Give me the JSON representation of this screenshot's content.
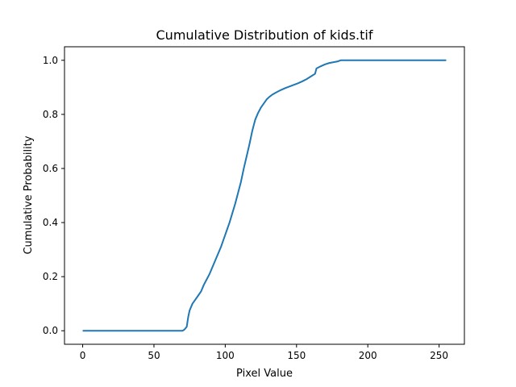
{
  "chart_data": {
    "type": "line",
    "title": "Cumulative Distribution of kids.tif",
    "xlabel": "Pixel Value",
    "ylabel": "Cumulative Probability",
    "xlim": [
      -12.75,
      267.75
    ],
    "ylim": [
      -0.05,
      1.05
    ],
    "xticks": [
      0,
      50,
      100,
      150,
      200,
      250
    ],
    "yticks": [
      0.0,
      0.2,
      0.4,
      0.6,
      0.8,
      1.0
    ],
    "xtick_labels": [
      "0",
      "50",
      "100",
      "150",
      "200",
      "250"
    ],
    "ytick_labels": [
      "0.0",
      "0.2",
      "0.4",
      "0.6",
      "0.8",
      "1.0"
    ],
    "grid": false,
    "series": [
      {
        "color": "#1f77b4",
        "points": [
          [
            0,
            0.0
          ],
          [
            70,
            0.0
          ],
          [
            71,
            0.003
          ],
          [
            72,
            0.008
          ],
          [
            73,
            0.015
          ],
          [
            74,
            0.05
          ],
          [
            75,
            0.075
          ],
          [
            77,
            0.1
          ],
          [
            79,
            0.115
          ],
          [
            81,
            0.13
          ],
          [
            83,
            0.145
          ],
          [
            85,
            0.17
          ],
          [
            87,
            0.19
          ],
          [
            89,
            0.21
          ],
          [
            91,
            0.235
          ],
          [
            93,
            0.26
          ],
          [
            95,
            0.285
          ],
          [
            97,
            0.31
          ],
          [
            99,
            0.34
          ],
          [
            101,
            0.37
          ],
          [
            103,
            0.4
          ],
          [
            105,
            0.435
          ],
          [
            107,
            0.47
          ],
          [
            109,
            0.51
          ],
          [
            111,
            0.55
          ],
          [
            113,
            0.6
          ],
          [
            115,
            0.645
          ],
          [
            117,
            0.69
          ],
          [
            119,
            0.74
          ],
          [
            121,
            0.78
          ],
          [
            123,
            0.805
          ],
          [
            125,
            0.825
          ],
          [
            127,
            0.84
          ],
          [
            129,
            0.855
          ],
          [
            131,
            0.865
          ],
          [
            133,
            0.873
          ],
          [
            136,
            0.882
          ],
          [
            139,
            0.89
          ],
          [
            142,
            0.897
          ],
          [
            145,
            0.903
          ],
          [
            148,
            0.909
          ],
          [
            151,
            0.915
          ],
          [
            154,
            0.922
          ],
          [
            157,
            0.93
          ],
          [
            160,
            0.94
          ],
          [
            163,
            0.95
          ],
          [
            164,
            0.97
          ],
          [
            167,
            0.978
          ],
          [
            170,
            0.985
          ],
          [
            173,
            0.99
          ],
          [
            176,
            0.993
          ],
          [
            179,
            0.996
          ],
          [
            181,
            1.0
          ],
          [
            200,
            1.0
          ],
          [
            230,
            1.0
          ],
          [
            255,
            1.0
          ]
        ]
      }
    ]
  }
}
